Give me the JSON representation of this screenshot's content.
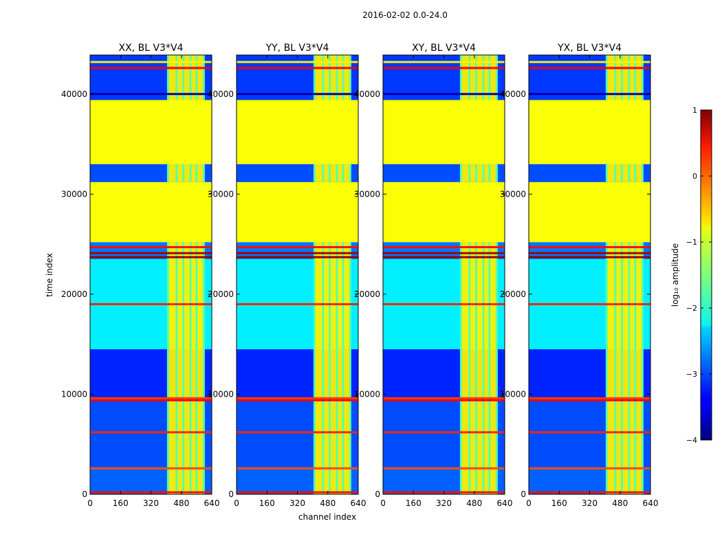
{
  "chart_data": {
    "type": "heatmap",
    "suptitle": "2016-02-02 0.0-24.0",
    "xlabel": "channel index",
    "ylabel": "time index",
    "xlim": [
      0,
      640
    ],
    "ylim": [
      0,
      43900
    ],
    "xticks": [
      0,
      160,
      320,
      480,
      640
    ],
    "yticks": [
      0,
      10000,
      20000,
      30000,
      40000
    ],
    "colorbar": {
      "label": "log₁₀ amplitude",
      "range": [
        -4,
        1
      ],
      "ticks": [
        1,
        0,
        -1,
        -2,
        -3,
        -4
      ],
      "tick_labels": [
        "1",
        "0",
        "−1",
        "−2",
        "−3",
        "−4"
      ],
      "colormap": "jet"
    },
    "panels": [
      {
        "title": "XX, BL V3*V4"
      },
      {
        "title": "YY, BL V3*V4"
      },
      {
        "title": "XY, BL V3*V4"
      },
      {
        "title": "YX, BL V3*V4"
      }
    ],
    "flagged_value": -0.9,
    "bright_channel_band": [
      410,
      600
    ],
    "bright_channel_stripes": [
      410,
      455,
      490,
      528,
      560,
      598
    ],
    "time_regions": [
      {
        "start": 0,
        "end": 2500,
        "value": -2.9
      },
      {
        "start": 2500,
        "end": 9500,
        "value": -3.0
      },
      {
        "start": 9500,
        "end": 14500,
        "value": -3.2
      },
      {
        "start": 14500,
        "end": 23500,
        "value": -2.2
      },
      {
        "start": 23500,
        "end": 25200,
        "value": -2.8
      },
      {
        "start": 25200,
        "end": 31200,
        "value": -0.9
      },
      {
        "start": 31200,
        "end": 33000,
        "value": -3.0
      },
      {
        "start": 33000,
        "end": 39400,
        "value": -0.9
      },
      {
        "start": 39400,
        "end": 43900,
        "value": -3.1
      }
    ],
    "time_lines": [
      {
        "t": 200,
        "value": 0.3
      },
      {
        "t": 2600,
        "value": 0.0
      },
      {
        "t": 6200,
        "value": 0.2
      },
      {
        "t": 9400,
        "value": 0.4
      },
      {
        "t": 9600,
        "value": 0.1
      },
      {
        "t": 19000,
        "value": 0.2
      },
      {
        "t": 23700,
        "value": 0.9
      },
      {
        "t": 24100,
        "value": 0.8
      },
      {
        "t": 24700,
        "value": 0.3
      },
      {
        "t": 40000,
        "value": -3.8
      },
      {
        "t": 42600,
        "value": 0.4
      },
      {
        "t": 43200,
        "value": -0.8
      }
    ]
  }
}
